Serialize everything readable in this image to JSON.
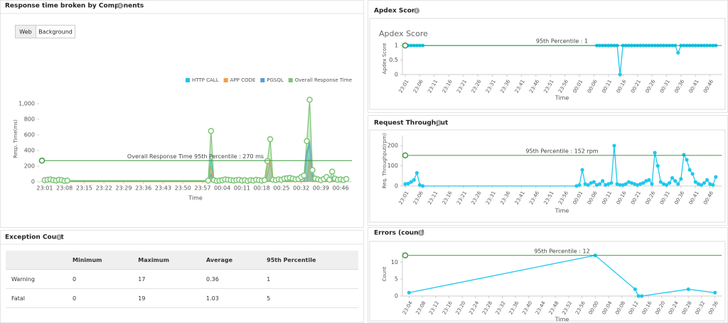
{
  "chart_data": [
    {
      "type": "area",
      "title": "Response time broken by Components",
      "xlabel": "Time",
      "ylabel": "Resp. Time(ms)",
      "legend": "top-right",
      "x": [
        "23:01",
        "23:02",
        "23:03",
        "23:04",
        "23:05",
        "23:06",
        "23:07",
        "23:08",
        "23:09",
        "23:59",
        "00:00",
        "00:01",
        "00:02",
        "00:03",
        "00:04",
        "00:05",
        "00:06",
        "00:07",
        "00:08",
        "00:09",
        "00:10",
        "00:11",
        "00:12",
        "00:13",
        "00:14",
        "00:15",
        "00:16",
        "00:17",
        "00:18",
        "00:19",
        "00:20",
        "00:21",
        "00:22",
        "00:23",
        "00:24",
        "00:25",
        "00:26",
        "00:27",
        "00:28",
        "00:29",
        "00:30",
        "00:31",
        "00:32",
        "00:33",
        "00:34",
        "00:35",
        "00:36",
        "00:37",
        "00:38",
        "00:39",
        "00:40",
        "00:41",
        "00:42",
        "00:43",
        "00:44",
        "00:45",
        "00:46",
        "00:47",
        "00:48"
      ],
      "xlim": [
        "22:59",
        "00:50"
      ],
      "xticks": [
        "23:01",
        "23:08",
        "23:15",
        "23:22",
        "23:29",
        "23:36",
        "23:43",
        "23:50",
        "23:57",
        "00:04",
        "00:11",
        "00:18",
        "00:25",
        "00:32",
        "00:39",
        "00:46"
      ],
      "ylim": [
        0,
        1100
      ],
      "yticks": [
        0,
        200,
        400,
        600,
        800,
        {
          "value": 1000,
          "label": "1,000"
        }
      ],
      "reference_line": {
        "value": 270,
        "label": "Overall Response Time 95th Percentile : 270 ms",
        "color": "#3d9a3d"
      },
      "series": [
        {
          "name": "HTTP CALL",
          "color": "#22c3e6",
          "values": [
            2,
            3,
            3,
            2,
            2,
            3,
            2,
            1,
            2,
            3,
            300,
            3,
            3,
            3,
            3,
            3,
            3,
            3,
            3,
            3,
            3,
            3,
            3,
            3,
            3,
            3,
            3,
            3,
            3,
            3,
            100,
            250,
            3,
            3,
            3,
            3,
            3,
            3,
            3,
            3,
            3,
            3,
            3,
            3,
            350,
            480,
            100,
            3,
            3,
            3,
            3,
            3,
            3,
            60,
            3,
            3,
            3,
            3,
            3
          ]
        },
        {
          "name": "APP CODE",
          "color": "#f0a04b",
          "values": [
            1,
            1,
            1,
            1,
            1,
            1,
            1,
            1,
            1,
            1,
            200,
            1,
            1,
            1,
            1,
            1,
            1,
            1,
            1,
            1,
            1,
            1,
            1,
            1,
            1,
            1,
            1,
            1,
            1,
            1,
            200,
            280,
            1,
            1,
            1,
            1,
            1,
            1,
            1,
            1,
            1,
            1,
            1,
            1,
            1,
            300,
            1,
            1,
            1,
            1,
            1,
            1,
            1,
            1,
            1,
            1,
            1,
            1,
            1
          ]
        },
        {
          "name": "PGSQL",
          "color": "#5b9bd5",
          "values": [
            5,
            5,
            5,
            5,
            5,
            5,
            5,
            5,
            5,
            5,
            100,
            5,
            5,
            5,
            5,
            5,
            5,
            5,
            5,
            5,
            5,
            5,
            5,
            5,
            5,
            5,
            5,
            5,
            5,
            5,
            5,
            5,
            5,
            5,
            5,
            5,
            5,
            5,
            5,
            5,
            5,
            5,
            5,
            5,
            380,
            530,
            80,
            5,
            5,
            5,
            5,
            5,
            5,
            5,
            5,
            5,
            5,
            5,
            5
          ]
        },
        {
          "name": "Overall Response Time",
          "color": "#7cc576",
          "values": [
            20,
            25,
            30,
            20,
            15,
            25,
            20,
            10,
            15,
            15,
            650,
            20,
            10,
            15,
            20,
            30,
            25,
            20,
            15,
            20,
            25,
            15,
            20,
            10,
            20,
            15,
            25,
            20,
            15,
            20,
            265,
            545,
            25,
            20,
            30,
            25,
            40,
            45,
            50,
            40,
            30,
            35,
            60,
            80,
            520,
            1050,
            150,
            40,
            30,
            20,
            35,
            60,
            25,
            130,
            40,
            25,
            30,
            20,
            35
          ]
        }
      ]
    },
    {
      "type": "line",
      "title": "Apdex Score",
      "chart_title": "Apdex Score",
      "xlabel": "Time",
      "ylabel": "Apdex Score",
      "color": "#1ec8ee",
      "x": [
        "23:01",
        "23:02",
        "23:03",
        "23:04",
        "23:05",
        "23:06",
        "23:07",
        "00:07",
        "00:08",
        "00:09",
        "00:10",
        "00:11",
        "00:12",
        "00:13",
        "00:14",
        "00:15",
        "00:16",
        "00:17",
        "00:18",
        "00:19",
        "00:20",
        "00:21",
        "00:22",
        "00:23",
        "00:24",
        "00:25",
        "00:26",
        "00:27",
        "00:28",
        "00:29",
        "00:30",
        "00:31",
        "00:32",
        "00:33",
        "00:34",
        "00:35",
        "00:36",
        "00:37",
        "00:38",
        "00:39",
        "00:40",
        "00:41",
        "00:42",
        "00:43",
        "00:44",
        "00:45",
        "00:46",
        "00:47",
        "00:48"
      ],
      "values": [
        1,
        1,
        1,
        1,
        1,
        1,
        1,
        1,
        1,
        1,
        1,
        1,
        1,
        1,
        1,
        0,
        1,
        1,
        1,
        1,
        1,
        1,
        1,
        1,
        1,
        1,
        1,
        1,
        1,
        1,
        1,
        1,
        1,
        1,
        1,
        0.75,
        1,
        1,
        1,
        1,
        1,
        1,
        1,
        1,
        1,
        1,
        1,
        1,
        1
      ],
      "xlim": [
        "23:00",
        "00:50"
      ],
      "xticks": [
        "23:01",
        "23:06",
        "23:11",
        "23:16",
        "23:21",
        "23:26",
        "23:31",
        "23:36",
        "23:41",
        "23:46",
        "23:51",
        "23:56",
        "00:01",
        "00:06",
        "00:11",
        "00:16",
        "00:21",
        "00:26",
        "00:31",
        "00:36",
        "00:41",
        "00:46"
      ],
      "ylim": [
        0,
        1.1
      ],
      "yticks": [
        0,
        0.5,
        1
      ],
      "reference_line": {
        "value": 1,
        "label": "95th Percentile : 1",
        "color": "#3d9a3d"
      }
    },
    {
      "type": "line",
      "title": "Request Throughput",
      "xlabel": "Time",
      "ylabel": "Req. Throughput(rpm)",
      "color": "#1ec8ee",
      "x": [
        "23:01",
        "23:02",
        "23:03",
        "23:04",
        "23:05",
        "23:06",
        "23:07",
        "00:00",
        "00:01",
        "00:02",
        "00:03",
        "00:04",
        "00:05",
        "00:06",
        "00:07",
        "00:08",
        "00:09",
        "00:10",
        "00:11",
        "00:12",
        "00:13",
        "00:14",
        "00:15",
        "00:16",
        "00:17",
        "00:18",
        "00:19",
        "00:20",
        "00:21",
        "00:22",
        "00:23",
        "00:24",
        "00:25",
        "00:26",
        "00:27",
        "00:28",
        "00:29",
        "00:30",
        "00:31",
        "00:32",
        "00:33",
        "00:34",
        "00:35",
        "00:36",
        "00:37",
        "00:38",
        "00:39",
        "00:40",
        "00:41",
        "00:42",
        "00:43",
        "00:44",
        "00:45",
        "00:46",
        "00:47",
        "00:48"
      ],
      "values": [
        10,
        12,
        20,
        30,
        65,
        5,
        0,
        0,
        5,
        80,
        10,
        5,
        15,
        20,
        5,
        10,
        25,
        5,
        10,
        15,
        200,
        10,
        5,
        5,
        10,
        20,
        15,
        10,
        5,
        10,
        15,
        25,
        30,
        10,
        165,
        100,
        20,
        10,
        5,
        15,
        40,
        25,
        10,
        35,
        155,
        130,
        80,
        60,
        20,
        10,
        5,
        15,
        30,
        10,
        5,
        45
      ],
      "xlim": [
        "23:00",
        "00:50"
      ],
      "xticks": [
        "23:01",
        "23:06",
        "23:11",
        "23:16",
        "23:21",
        "23:26",
        "23:31",
        "23:36",
        "23:41",
        "23:46",
        "23:51",
        "23:56",
        "00:01",
        "00:06",
        "00:11",
        "00:16",
        "00:21",
        "00:26",
        "00:31",
        "00:36",
        "00:41",
        "00:46"
      ],
      "ylim": [
        0,
        250
      ],
      "yticks": [
        0,
        100,
        200
      ],
      "reference_line": {
        "value": 152,
        "label": "95th Percentile : 152 rpm",
        "color": "#3d9a3d"
      }
    },
    {
      "type": "line",
      "title": "Errors (count)",
      "xlabel": "Time",
      "ylabel": "Count",
      "color": "#1ec8ee",
      "x": [
        "23:04",
        "00:00",
        "00:12",
        "00:13",
        "00:14",
        "00:28",
        "00:36"
      ],
      "values": [
        1,
        12,
        2,
        0,
        0,
        2,
        1
      ],
      "xlim": [
        "23:02",
        "00:38"
      ],
      "xticks": [
        "23:04",
        "23:08",
        "23:12",
        "23:16",
        "23:20",
        "23:24",
        "23:28",
        "23:32",
        "23:36",
        "23:40",
        "23:44",
        "23:48",
        "23:52",
        "23:56",
        "00:00",
        "00:04",
        "00:08",
        "00:12",
        "00:16",
        "00:20",
        "00:24",
        "00:28",
        "00:32",
        "00:36"
      ],
      "ylim": [
        0,
        13
      ],
      "yticks": [
        0,
        5,
        10
      ],
      "reference_line": {
        "value": 12,
        "label": "95th Percentile : 12",
        "color": "#3d9a3d"
      }
    }
  ],
  "tabs": [
    "Web",
    "Background"
  ],
  "exception_count": {
    "title": "Exception Count",
    "columns": [
      "Minimum",
      "Maximum",
      "Average",
      "95th Percentile"
    ],
    "rows": [
      [
        "Warning",
        0,
        17,
        0.36,
        1
      ],
      [
        "Fatal",
        0,
        19,
        1.03,
        5
      ]
    ]
  }
}
